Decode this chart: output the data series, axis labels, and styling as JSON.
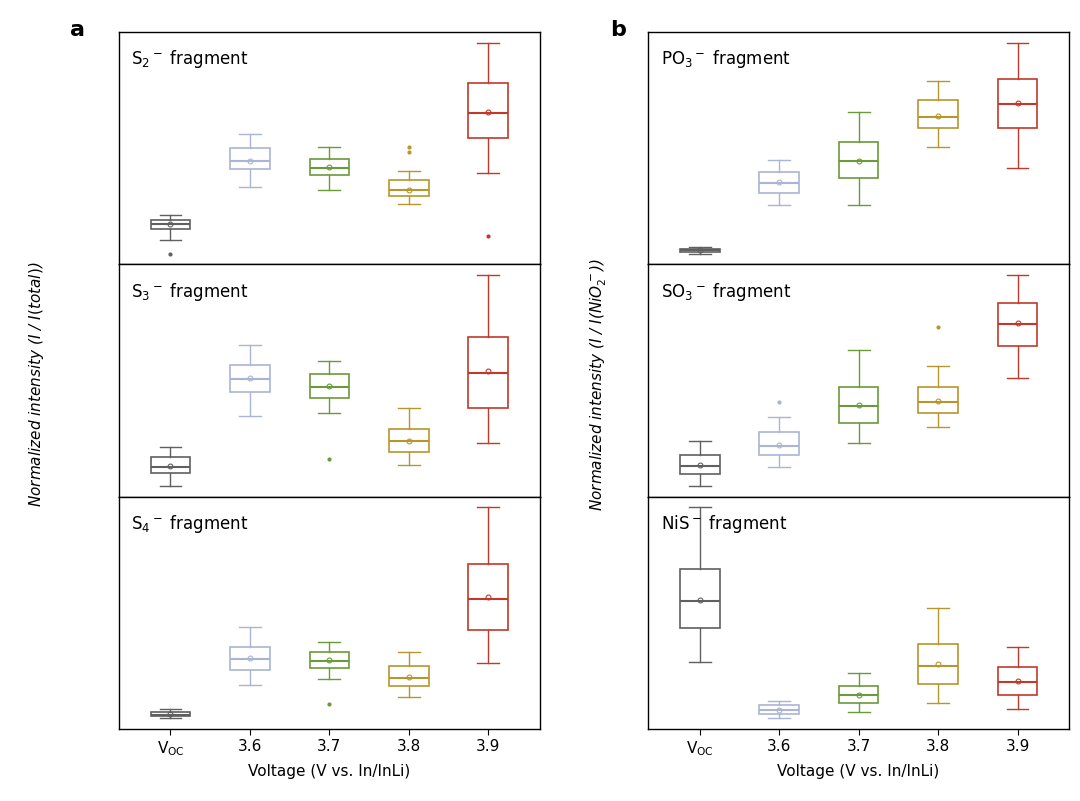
{
  "x_label": "Voltage (V vs. In/InLi)",
  "y_label_a": "Normalized intensity ($I$ / $I(total)$)",
  "y_label_b": "Normalized intensity ($I$ / $I(NiO$_2$$^{-}$))",
  "colors": {
    "VOC": "#606060",
    "3.6": "#aab4d4",
    "3.7": "#6a9a3a",
    "3.8": "#b8962e",
    "3.9": "#c0392b"
  },
  "panel_a": {
    "S2": {
      "VOC": {
        "whislo": 0.6,
        "q1": 0.75,
        "med": 0.82,
        "q3": 0.88,
        "whishi": 0.95,
        "fliers_high": [],
        "fliers_low": [
          0.4
        ],
        "mean": 0.82
      },
      "3.6": {
        "whislo": 1.35,
        "q1": 1.6,
        "med": 1.72,
        "q3": 1.9,
        "whishi": 2.1,
        "fliers_high": [],
        "fliers_low": [],
        "mean": 1.72
      },
      "3.7": {
        "whislo": 1.3,
        "q1": 1.52,
        "med": 1.62,
        "q3": 1.75,
        "whishi": 1.92,
        "fliers_high": [],
        "fliers_low": [],
        "mean": 1.63
      },
      "3.8": {
        "whislo": 1.1,
        "q1": 1.22,
        "med": 1.3,
        "q3": 1.45,
        "whishi": 1.58,
        "fliers_high": [
          1.85,
          1.92
        ],
        "fliers_low": [],
        "mean": 1.31
      },
      "3.9": {
        "whislo": 1.55,
        "q1": 2.05,
        "med": 2.4,
        "q3": 2.82,
        "whishi": 3.4,
        "fliers_high": [],
        "fliers_low": [
          0.65
        ],
        "mean": 2.42
      }
    },
    "S3": {
      "VOC": {
        "whislo": 0.35,
        "q1": 0.52,
        "med": 0.6,
        "q3": 0.72,
        "whishi": 0.85,
        "fliers_high": [],
        "fliers_low": [],
        "mean": 0.61
      },
      "3.6": {
        "whislo": 1.25,
        "q1": 1.55,
        "med": 1.72,
        "q3": 1.9,
        "whishi": 2.15,
        "fliers_high": [],
        "fliers_low": [],
        "mean": 1.73
      },
      "3.7": {
        "whislo": 1.28,
        "q1": 1.48,
        "med": 1.62,
        "q3": 1.78,
        "whishi": 1.95,
        "fliers_high": [],
        "fliers_low": [
          0.7
        ],
        "mean": 1.63
      },
      "3.8": {
        "whislo": 0.62,
        "q1": 0.78,
        "med": 0.92,
        "q3": 1.08,
        "whishi": 1.35,
        "fliers_high": [],
        "fliers_low": [],
        "mean": 0.93
      },
      "3.9": {
        "whislo": 0.9,
        "q1": 1.35,
        "med": 1.8,
        "q3": 2.25,
        "whishi": 3.05,
        "fliers_high": [],
        "fliers_low": [],
        "mean": 1.82
      }
    },
    "S4": {
      "VOC": {
        "whislo": 0.05,
        "q1": 0.08,
        "med": 0.1,
        "q3": 0.14,
        "whishi": 0.18,
        "fliers_high": [],
        "fliers_low": [],
        "mean": 0.11
      },
      "3.6": {
        "whislo": 0.52,
        "q1": 0.72,
        "med": 0.88,
        "q3": 1.05,
        "whishi": 1.32,
        "fliers_high": [],
        "fliers_low": [],
        "mean": 0.89
      },
      "3.7": {
        "whislo": 0.6,
        "q1": 0.75,
        "med": 0.85,
        "q3": 0.97,
        "whishi": 1.12,
        "fliers_high": [],
        "fliers_low": [
          0.25
        ],
        "mean": 0.86
      },
      "3.8": {
        "whislo": 0.35,
        "q1": 0.5,
        "med": 0.62,
        "q3": 0.78,
        "whishi": 0.98,
        "fliers_high": [],
        "fliers_low": [],
        "mean": 0.63
      },
      "3.9": {
        "whislo": 0.82,
        "q1": 1.28,
        "med": 1.72,
        "q3": 2.2,
        "whishi": 3.0,
        "fliers_high": [],
        "fliers_low": [],
        "mean": 1.75
      }
    }
  },
  "panel_b": {
    "PO3": {
      "VOC": {
        "whislo": 0.06,
        "q1": 0.08,
        "med": 0.1,
        "q3": 0.12,
        "whishi": 0.14,
        "fliers_high": [],
        "fliers_low": [],
        "mean": 0.1
      },
      "3.6": {
        "whislo": 0.65,
        "q1": 0.8,
        "med": 0.92,
        "q3": 1.05,
        "whishi": 1.2,
        "fliers_high": [],
        "fliers_low": [],
        "mean": 0.93
      },
      "3.7": {
        "whislo": 0.65,
        "q1": 0.98,
        "med": 1.18,
        "q3": 1.42,
        "whishi": 1.78,
        "fliers_high": [],
        "fliers_low": [],
        "mean": 1.19
      },
      "3.8": {
        "whislo": 1.35,
        "q1": 1.58,
        "med": 1.72,
        "q3": 1.92,
        "whishi": 2.15,
        "fliers_high": [],
        "fliers_low": [],
        "mean": 1.73
      },
      "3.9": {
        "whislo": 1.1,
        "q1": 1.58,
        "med": 1.88,
        "q3": 2.18,
        "whishi": 2.62,
        "fliers_high": [],
        "fliers_low": [],
        "mean": 1.89
      }
    },
    "SO3": {
      "VOC": {
        "whislo": 0.22,
        "q1": 0.35,
        "med": 0.44,
        "q3": 0.55,
        "whishi": 0.7,
        "fliers_high": [],
        "fliers_low": [],
        "mean": 0.45
      },
      "3.6": {
        "whislo": 0.42,
        "q1": 0.55,
        "med": 0.65,
        "q3": 0.8,
        "whishi": 0.96,
        "fliers_high": [
          1.12
        ],
        "fliers_low": [],
        "mean": 0.66
      },
      "3.7": {
        "whislo": 0.68,
        "q1": 0.9,
        "med": 1.08,
        "q3": 1.28,
        "whishi": 1.68,
        "fliers_high": [],
        "fliers_low": [],
        "mean": 1.09
      },
      "3.8": {
        "whislo": 0.85,
        "q1": 1.0,
        "med": 1.12,
        "q3": 1.28,
        "whishi": 1.5,
        "fliers_high": [
          1.92
        ],
        "fliers_low": [],
        "mean": 1.13
      },
      "3.9": {
        "whislo": 1.38,
        "q1": 1.72,
        "med": 1.95,
        "q3": 2.18,
        "whishi": 2.48,
        "fliers_high": [],
        "fliers_low": [],
        "mean": 1.96
      }
    },
    "NiS": {
      "VOC": {
        "whislo": 0.68,
        "q1": 1.0,
        "med": 1.25,
        "q3": 1.55,
        "whishi": 2.12,
        "fliers_high": [],
        "fliers_low": [],
        "mean": 1.26
      },
      "3.6": {
        "whislo": 0.16,
        "q1": 0.2,
        "med": 0.24,
        "q3": 0.28,
        "whishi": 0.32,
        "fliers_high": [],
        "fliers_low": [],
        "mean": 0.24
      },
      "3.7": {
        "whislo": 0.22,
        "q1": 0.3,
        "med": 0.38,
        "q3": 0.46,
        "whishi": 0.58,
        "fliers_high": [],
        "fliers_low": [],
        "mean": 0.38
      },
      "3.8": {
        "whislo": 0.3,
        "q1": 0.48,
        "med": 0.65,
        "q3": 0.85,
        "whishi": 1.18,
        "fliers_high": [],
        "fliers_low": [],
        "mean": 0.66
      },
      "3.9": {
        "whislo": 0.25,
        "q1": 0.38,
        "med": 0.5,
        "q3": 0.64,
        "whishi": 0.82,
        "fliers_high": [],
        "fliers_low": [],
        "mean": 0.51
      }
    }
  },
  "subplot_titles_a": [
    "S$_2$$^-$ fragment",
    "S$_3$$^-$ fragment",
    "S$_4$$^-$ fragment"
  ],
  "subplot_titles_b": [
    "PO$_3$$^-$ fragment",
    "SO$_3$$^-$ fragment",
    "NiS$^-$ fragment"
  ],
  "box_width": 0.5
}
